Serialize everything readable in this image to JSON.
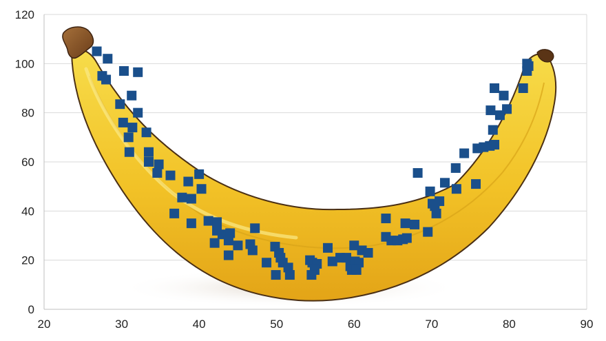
{
  "chart_data": {
    "type": "scatter",
    "title": "",
    "xlabel": "",
    "ylabel": "",
    "xlim": [
      20,
      90
    ],
    "ylim": [
      0,
      120
    ],
    "x_ticks": [
      20,
      30,
      40,
      50,
      60,
      70,
      80,
      90
    ],
    "y_ticks": [
      0,
      20,
      40,
      60,
      80,
      100,
      120
    ],
    "grid": "horizontal",
    "legend": "none",
    "background_image": "banana",
    "marker": "square",
    "colors": {
      "marker": "#1a4f8b",
      "grid": "#d9d9d9",
      "tick_text": "#222222"
    },
    "series": [
      {
        "points": [
          [
            26.8,
            105
          ],
          [
            28.2,
            102
          ],
          [
            27.5,
            95
          ],
          [
            28,
            93.5
          ],
          [
            30.3,
            97
          ],
          [
            32.1,
            96.5
          ],
          [
            31.3,
            87
          ],
          [
            29.8,
            83.5
          ],
          [
            32.1,
            80
          ],
          [
            30.2,
            76
          ],
          [
            31.4,
            74
          ],
          [
            30.9,
            70
          ],
          [
            33.2,
            72
          ],
          [
            31,
            64
          ],
          [
            33.5,
            64
          ],
          [
            33.5,
            60
          ],
          [
            34.8,
            59
          ],
          [
            34.6,
            55.5
          ],
          [
            36.3,
            54.5
          ],
          [
            40,
            55
          ],
          [
            38.6,
            52
          ],
          [
            40.3,
            49
          ],
          [
            37.8,
            45.5
          ],
          [
            39,
            45
          ],
          [
            36.8,
            39
          ],
          [
            39,
            35
          ],
          [
            41.2,
            36
          ],
          [
            42.3,
            35.5
          ],
          [
            42.3,
            32
          ],
          [
            43,
            30.5
          ],
          [
            44,
            31
          ],
          [
            42,
            27
          ],
          [
            43.8,
            28
          ],
          [
            45,
            26
          ],
          [
            46.6,
            26.5
          ],
          [
            46.9,
            24
          ],
          [
            43.8,
            22
          ],
          [
            47.2,
            33
          ],
          [
            48.7,
            19
          ],
          [
            49.8,
            25.5
          ],
          [
            50.3,
            23
          ],
          [
            50.5,
            21
          ],
          [
            50.8,
            19
          ],
          [
            51.5,
            17
          ],
          [
            49.9,
            14
          ],
          [
            51.7,
            14
          ],
          [
            54.3,
            20
          ],
          [
            54.6,
            19
          ],
          [
            55.2,
            18.5
          ],
          [
            54.9,
            16
          ],
          [
            54.5,
            14
          ],
          [
            56.6,
            25
          ],
          [
            57.2,
            19.5
          ],
          [
            58.2,
            21
          ],
          [
            59,
            21
          ],
          [
            59.5,
            17.5
          ],
          [
            60.1,
            19.5
          ],
          [
            60.6,
            19
          ],
          [
            59.7,
            16
          ],
          [
            60.3,
            16
          ],
          [
            60,
            26
          ],
          [
            61,
            24
          ],
          [
            61.8,
            23
          ],
          [
            64.1,
            37
          ],
          [
            64.1,
            29.5
          ],
          [
            64.8,
            28
          ],
          [
            65.6,
            28
          ],
          [
            66.3,
            28.5
          ],
          [
            66.8,
            29
          ],
          [
            66.6,
            35
          ],
          [
            67.8,
            34.5
          ],
          [
            68.2,
            55.5
          ],
          [
            69.5,
            31.5
          ],
          [
            69.8,
            48
          ],
          [
            70.4,
            42
          ],
          [
            71,
            44
          ],
          [
            70.6,
            39
          ],
          [
            70.1,
            43
          ],
          [
            71.7,
            51.5
          ],
          [
            73.2,
            49
          ],
          [
            73.1,
            57.5
          ],
          [
            74.2,
            63.5
          ],
          [
            75.7,
            51
          ],
          [
            75.9,
            65.5
          ],
          [
            76.7,
            66
          ],
          [
            77.5,
            66.5
          ],
          [
            78.1,
            67
          ],
          [
            77.9,
            73
          ],
          [
            77.6,
            81
          ],
          [
            78.8,
            79
          ],
          [
            79.7,
            81.5
          ],
          [
            79.3,
            87
          ],
          [
            78.1,
            90
          ],
          [
            81.8,
            90
          ],
          [
            82.3,
            97
          ],
          [
            82.5,
            99
          ],
          [
            82.3,
            100
          ]
        ]
      }
    ]
  }
}
